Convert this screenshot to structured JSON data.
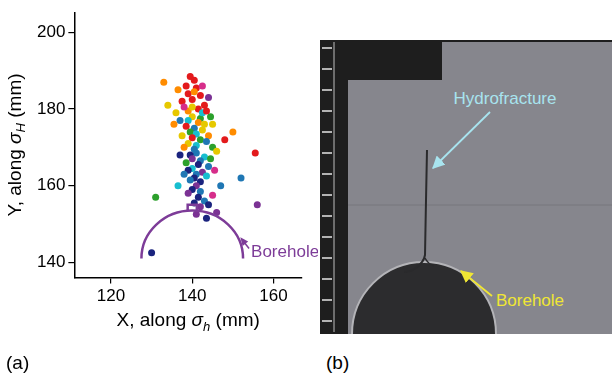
{
  "chart_data": {
    "type": "scatter",
    "xlabel": "X, along σh (mm)",
    "ylabel": "Y, along σH (mm)",
    "xlim": [
      111,
      167
    ],
    "xticks": [
      120,
      140,
      160
    ],
    "ylim": [
      136,
      205
    ],
    "yticks": [
      140,
      160,
      180,
      200
    ],
    "grid": false,
    "marker": "circle",
    "x": [
      139.5,
      140.5,
      138.5,
      141,
      139,
      142,
      140,
      137.5,
      143,
      141.5,
      139,
      136.5,
      142.5,
      140.5,
      144,
      138,
      140,
      142,
      139,
      141.5,
      143,
      138.5,
      140.5,
      142.5,
      139.5,
      141,
      144,
      137.5,
      140,
      142,
      143.5,
      139,
      141,
      145,
      138,
      140.5,
      142.5,
      144.5,
      137,
      140,
      143.5,
      136,
      145,
      135.5,
      141,
      139.5,
      143,
      140,
      142,
      138.5,
      141.5,
      144,
      140,
      139,
      142.5,
      141,
      140.5,
      143.5,
      139.5,
      142,
      141,
      138,
      144.5,
      145.5,
      146,
      137,
      140,
      142,
      139,
      141.5,
      143,
      140.5,
      145,
      142,
      144,
      147,
      141,
      143.5,
      146,
      155.5,
      156,
      131,
      133,
      130,
      152,
      150,
      136.5,
      148,
      134
    ],
    "values": [
      188.5,
      187.5,
      186,
      185.5,
      184,
      183.5,
      182.5,
      182,
      181,
      180,
      179.5,
      185,
      186,
      184.5,
      183,
      180.5,
      178,
      177.5,
      177,
      176.5,
      176,
      175.5,
      175,
      174.5,
      174,
      173.5,
      173,
      173,
      172.5,
      172,
      171.5,
      171,
      170.5,
      170,
      170,
      169.5,
      179,
      178,
      177,
      180.5,
      179.5,
      179,
      176,
      176,
      168.5,
      168,
      167.5,
      167,
      166.5,
      166,
      165.5,
      165,
      164.5,
      164,
      163.5,
      163,
      162,
      162.5,
      161.5,
      161,
      160,
      163,
      167,
      164,
      169,
      168,
      159,
      158.5,
      158,
      157,
      156,
      155.5,
      157.5,
      154.5,
      155,
      160,
      152.5,
      151.5,
      153,
      168.5,
      155,
      157,
      187,
      142.5,
      162,
      174,
      160,
      172,
      181
    ],
    "colors": [
      "#e31a1c",
      "#e31a1c",
      "#e31a1c",
      "#e31a1c",
      "#e31a1c",
      "#e31a1c",
      "#e31a1c",
      "#e31a1c",
      "#e31a1c",
      "#e31a1c",
      "#ff8c00",
      "#ff8c00",
      "#d62d8a",
      "#ff8c00",
      "#7b3294",
      "#d62d8a",
      "#e6c800",
      "#2ca02c",
      "#17becf",
      "#ff8c00",
      "#e6c800",
      "#e31a1c",
      "#1f77b4",
      "#e6c800",
      "#2ca02c",
      "#17becf",
      "#ff8c00",
      "#e6c800",
      "#e31a1c",
      "#2ca02c",
      "#1f77b4",
      "#e6c800",
      "#17becf",
      "#2ca02c",
      "#ff8c00",
      "#1f77b4",
      "#17becf",
      "#2ca02c",
      "#1f77b4",
      "#e6c800",
      "#e31a1c",
      "#e6c800",
      "#e6c800",
      "#ff8c00",
      "#1f77b4",
      "#1a237e",
      "#17becf",
      "#7b3294",
      "#1f77b4",
      "#2ca02c",
      "#1a237e",
      "#1f77b4",
      "#17becf",
      "#1a237e",
      "#7b3294",
      "#1f77b4",
      "#1a237e",
      "#17becf",
      "#1f77b4",
      "#1a237e",
      "#7b3294",
      "#1f77b4",
      "#2ca02c",
      "#d62d8a",
      "#e6c800",
      "#1a237e",
      "#1a237e",
      "#1f77b4",
      "#7b3294",
      "#1a237e",
      "#1f77b4",
      "#1a237e",
      "#d62d8a",
      "#7b3294",
      "#1a237e",
      "#1f77b4",
      "#7b3294",
      "#1a237e",
      "#7b3294",
      "#e31a1c",
      "#7b3294",
      "#2ca02c",
      "#ff8c00",
      "#1a237e",
      "#1f77b4",
      "#ff8c00",
      "#17becf",
      "#e31a1c",
      "#e6c800"
    ],
    "borehole": {
      "label": "Borehole",
      "center": [
        140,
        141
      ],
      "radius": 12.5,
      "color": "#7d3c98"
    }
  },
  "panel_labels": [
    "(a)",
    "(b)"
  ],
  "photo": {
    "hydrofracture_label": "Hydrofracture",
    "borehole_label": "Borehole"
  }
}
